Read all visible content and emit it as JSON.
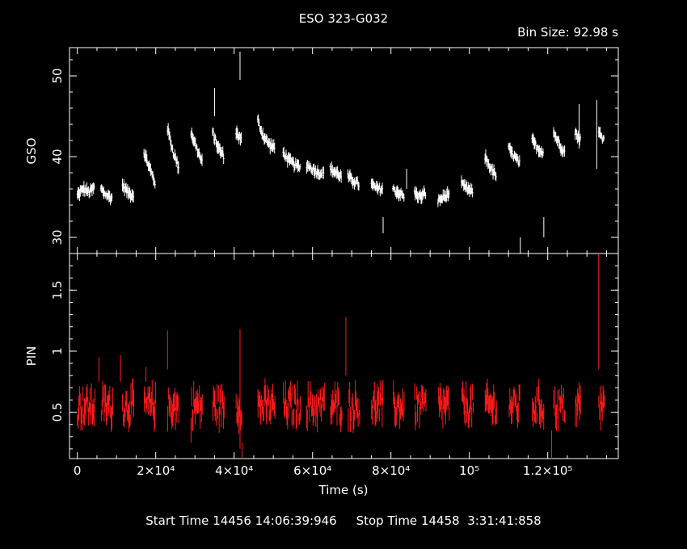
{
  "chart_data": {
    "type": "line",
    "title": "ESO 323-G032",
    "bin_size_label": "Bin Size: 92.98 s",
    "footer": {
      "start_label": "Start Time",
      "start_value": "14456 14:06:39:946",
      "stop_label": "Stop Time",
      "stop_value": "14458  3:31:41:858"
    },
    "xlabel": "Time (s)",
    "xlim": [
      -2000,
      138000
    ],
    "x_ticks": [
      {
        "value": 0,
        "label": "0"
      },
      {
        "value": 20000,
        "label": "2×10⁴"
      },
      {
        "value": 40000,
        "label": "4×10⁴"
      },
      {
        "value": 60000,
        "label": "6×10⁴"
      },
      {
        "value": 80000,
        "label": "8×10⁴"
      },
      {
        "value": 100000,
        "label": "10⁵"
      },
      {
        "value": 120000,
        "label": "1.2×10⁵"
      }
    ],
    "panels": [
      {
        "name": "GSO",
        "ylabel": "GSO",
        "ylim": [
          28,
          53.5
        ],
        "y_ticks": [
          {
            "value": 30,
            "label": "30"
          },
          {
            "value": 40,
            "label": "40"
          },
          {
            "value": 50,
            "label": "50"
          }
        ],
        "color": "#ffffff",
        "segments": [
          {
            "x": [
              0,
              1500,
              3000,
              4500
            ],
            "y": [
              35.2,
              36.0,
              35.6,
              36.2
            ]
          },
          {
            "x": [
              6000,
              7500,
              9000
            ],
            "y": [
              36.0,
              35.2,
              34.8
            ]
          },
          {
            "x": [
              11500,
              13000,
              14500
            ],
            "y": [
              36.5,
              35.5,
              35.2
            ]
          },
          {
            "x": [
              17000,
              18500,
              20000
            ],
            "y": [
              40.5,
              38.5,
              36.5
            ]
          },
          {
            "x": [
              23000,
              24500,
              26000
            ],
            "y": [
              43.5,
              40.5,
              38.5
            ]
          },
          {
            "x": [
              29000,
              30500,
              32000
            ],
            "y": [
              43.0,
              41.0,
              39.0
            ]
          },
          {
            "x": [
              34500,
              36000,
              37500
            ],
            "y": [
              43.0,
              41.0,
              40.0
            ]
          },
          {
            "x": [
              40500,
              42000
            ],
            "y": [
              43.0,
              42.0
            ]
          },
          {
            "x": [
              46000,
              47500,
              49000,
              50500
            ],
            "y": [
              44.5,
              42.5,
              41.5,
              41.0
            ]
          },
          {
            "x": [
              52500,
              54000,
              55500,
              57000
            ],
            "y": [
              40.5,
              39.5,
              39.0,
              38.5
            ]
          },
          {
            "x": [
              58500,
              60000,
              61500,
              63000
            ],
            "y": [
              39.0,
              38.5,
              38.0,
              38.0
            ]
          },
          {
            "x": [
              64500,
              66000,
              67500
            ],
            "y": [
              38.5,
              38.0,
              37.5
            ]
          },
          {
            "x": [
              69000,
              70500,
              72000
            ],
            "y": [
              37.5,
              37.0,
              36.5
            ]
          },
          {
            "x": [
              75000,
              76500,
              78000
            ],
            "y": [
              36.5,
              36.0,
              36.0
            ]
          },
          {
            "x": [
              80500,
              82000,
              83500
            ],
            "y": [
              36.0,
              35.5,
              35.0
            ]
          },
          {
            "x": [
              86000,
              87500,
              89000
            ],
            "y": [
              35.5,
              35.0,
              35.5
            ]
          },
          {
            "x": [
              92000,
              93500,
              95000
            ],
            "y": [
              34.5,
              35.0,
              35.5
            ]
          },
          {
            "x": [
              98000,
              99500,
              101000
            ],
            "y": [
              36.5,
              36.0,
              35.5
            ]
          },
          {
            "x": [
              104000,
              105500,
              107000
            ],
            "y": [
              40.0,
              38.5,
              37.5
            ]
          },
          {
            "x": [
              110000,
              111500,
              113000
            ],
            "y": [
              41.0,
              40.0,
              39.0
            ]
          },
          {
            "x": [
              116000,
              117500,
              119000
            ],
            "y": [
              42.0,
              41.0,
              40.5
            ]
          },
          {
            "x": [
              121500,
              123000,
              124500
            ],
            "y": [
              43.0,
              41.5,
              40.5
            ]
          },
          {
            "x": [
              127000,
              128500
            ],
            "y": [
              43.0,
              42.0
            ]
          },
          {
            "x": [
              133000,
              134500
            ],
            "y": [
              43.0,
              42.0
            ]
          }
        ],
        "spikes": [
          {
            "x": 41500,
            "lo": 49.5,
            "hi": 53.0
          },
          {
            "x": 35000,
            "lo": 45.0,
            "hi": 48.5
          },
          {
            "x": 78000,
            "lo": 30.5,
            "hi": 32.5
          },
          {
            "x": 113000,
            "lo": 28.0,
            "hi": 30.0
          },
          {
            "x": 119000,
            "lo": 30.0,
            "hi": 32.5
          },
          {
            "x": 132500,
            "lo": 38.5,
            "hi": 47.0
          },
          {
            "x": 84000,
            "lo": 36.0,
            "hi": 38.5
          },
          {
            "x": 128000,
            "lo": 41.0,
            "hi": 46.5
          }
        ]
      },
      {
        "name": "PIN",
        "ylabel": "PIN",
        "ylim": [
          0.12,
          1.8
        ],
        "y_ticks": [
          {
            "value": 0.5,
            "label": "0.5"
          },
          {
            "value": 1,
            "label": "1"
          },
          {
            "value": 1.5,
            "label": "1.5"
          }
        ],
        "color": "#ff1a1a",
        "level": 0.55,
        "scatter": 0.12,
        "spikes": [
          {
            "x": 23000,
            "lo": 0.85,
            "hi": 1.17
          },
          {
            "x": 41500,
            "lo": 0.2,
            "hi": 1.18
          },
          {
            "x": 42000,
            "lo": 0.12,
            "hi": 0.25
          },
          {
            "x": 68500,
            "lo": 0.8,
            "hi": 1.28
          },
          {
            "x": 29000,
            "lo": 0.25,
            "hi": 0.45
          },
          {
            "x": 121000,
            "lo": 0.12,
            "hi": 0.35
          },
          {
            "x": 133000,
            "lo": 0.85,
            "hi": 1.8
          },
          {
            "x": 5500,
            "lo": 0.75,
            "hi": 0.95
          },
          {
            "x": 11000,
            "lo": 0.75,
            "hi": 0.97
          },
          {
            "x": 17500,
            "lo": 0.75,
            "hi": 0.87
          }
        ]
      }
    ]
  }
}
